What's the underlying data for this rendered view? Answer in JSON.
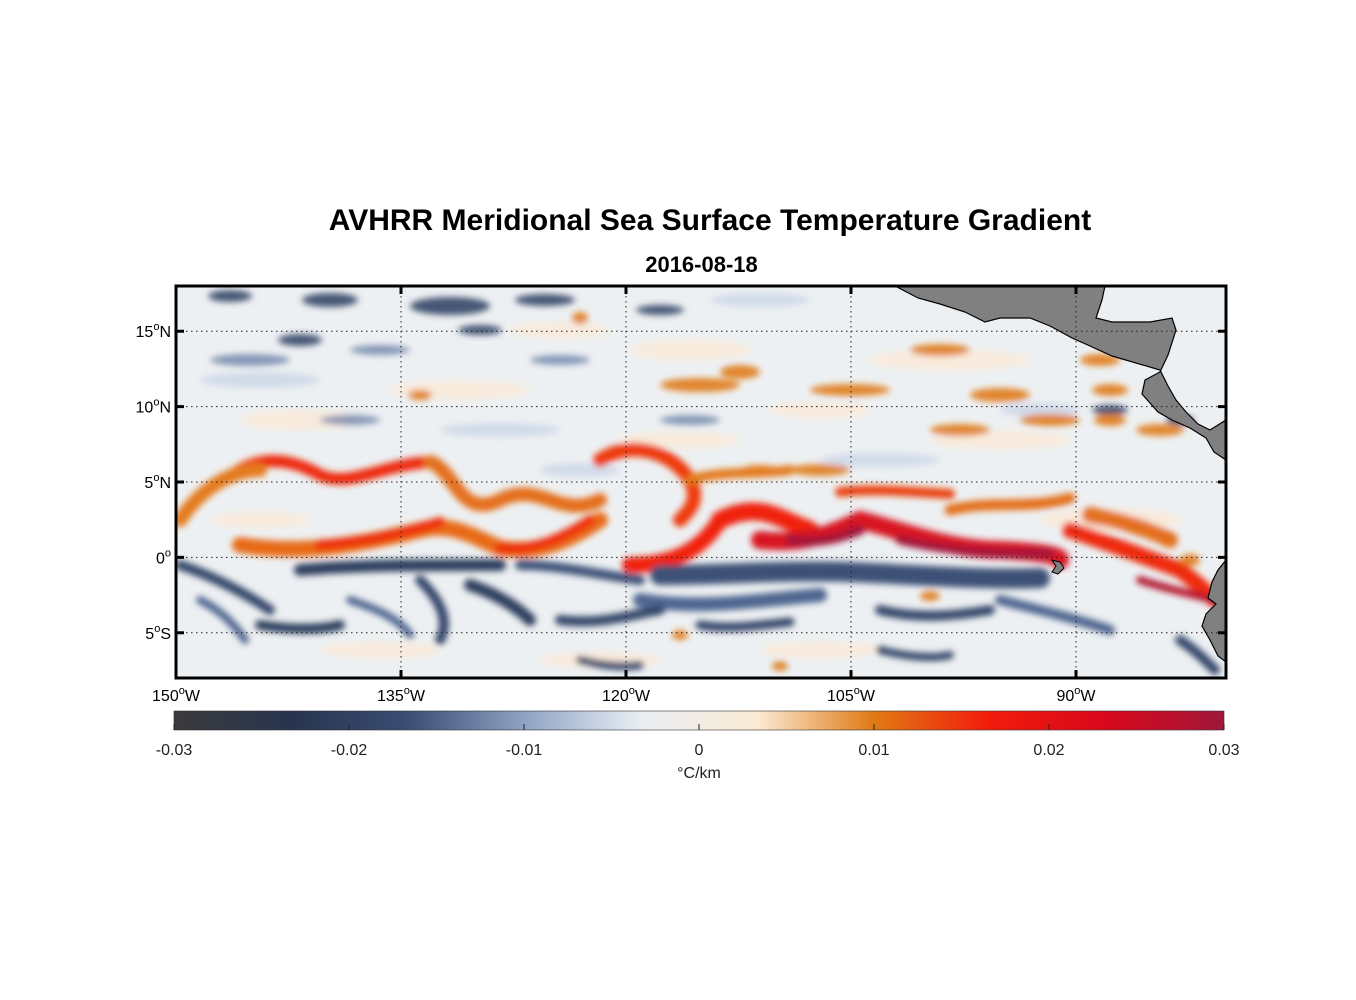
{
  "map": {
    "title": "AVHRR Meridional Sea Surface Temperature Gradient",
    "date": "2016-08-18",
    "extent": {
      "lon_min": -150,
      "lon_max": -80,
      "lat_min": -8,
      "lat_max": 18
    },
    "lat_ticks": [
      {
        "value": 15,
        "num": "15",
        "hemi": "N"
      },
      {
        "value": 10,
        "num": "10",
        "hemi": "N"
      },
      {
        "value": 5,
        "num": "5",
        "hemi": "N"
      },
      {
        "value": 0,
        "num": "0",
        "hemi": ""
      },
      {
        "value": -5,
        "num": "5",
        "hemi": "S"
      }
    ],
    "lon_ticks": [
      {
        "value": -150,
        "num": "150",
        "hemi": "W"
      },
      {
        "value": -135,
        "num": "135",
        "hemi": "W"
      },
      {
        "value": -120,
        "num": "120",
        "hemi": "W"
      },
      {
        "value": -105,
        "num": "105",
        "hemi": "W"
      },
      {
        "value": -90,
        "num": "90",
        "hemi": "W"
      }
    ],
    "degree_symbol": "o",
    "land_color": "#808080",
    "colorbar": {
      "min": -0.03,
      "max": 0.03,
      "tick_labels": [
        "-0.03",
        "-0.02",
        "-0.01",
        "0",
        "0.01",
        "0.02",
        "0.03"
      ],
      "tick_values": [
        -0.03,
        -0.02,
        -0.01,
        0,
        0.01,
        0.02,
        0.03
      ],
      "unit_label": "°C/km",
      "colors": [
        "#3a3a3c",
        "#28344f",
        "#3a4d72",
        "#8fa2c4",
        "#e8eef3",
        "#fbead3",
        "#e07a14",
        "#f21b0c",
        "#d8081c",
        "#a0173a"
      ]
    }
  }
}
